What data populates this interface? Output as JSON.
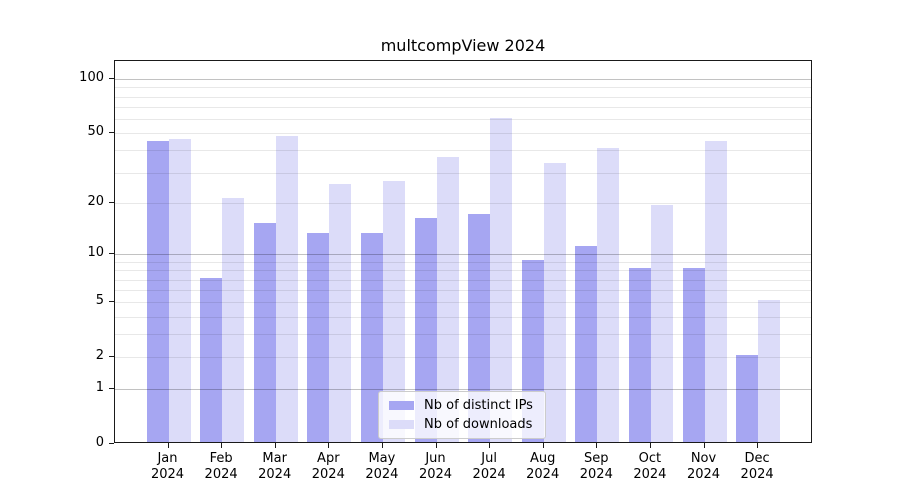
{
  "chart_data": {
    "type": "bar",
    "title": "multcompView 2024",
    "categories": [
      "Jan",
      "Feb",
      "Mar",
      "Apr",
      "May",
      "Jun",
      "Jul",
      "Aug",
      "Sep",
      "Oct",
      "Nov",
      "Dec"
    ],
    "category_year": "2024",
    "series": [
      {
        "name": "Nb of distinct IPs",
        "color": "#a6a6f2",
        "values": [
          44,
          7,
          15,
          13,
          13,
          16,
          17,
          9,
          11,
          8,
          8,
          2
        ]
      },
      {
        "name": "Nb of downloads",
        "color": "#dcdcf9",
        "values": [
          45,
          21,
          47,
          25,
          26,
          36,
          59,
          33,
          40,
          19,
          44,
          5
        ]
      }
    ],
    "y_axis": {
      "scale": "log1p",
      "tick_values": [
        100,
        50,
        20,
        10,
        5,
        2,
        1,
        0
      ],
      "minor_gridlines": [
        2,
        3,
        4,
        5,
        6,
        7,
        8,
        9,
        20,
        30,
        40,
        50,
        60,
        70,
        80,
        90
      ],
      "major_gridlines": [
        1,
        10,
        100
      ],
      "ylim": [
        0,
        126
      ]
    },
    "legend": {
      "position": "lower center"
    },
    "grid": true
  },
  "colors": {
    "bar_distinct_ips": "#a6a6f2",
    "bar_downloads": "#dcdcf9",
    "axis": "#1a1a1a",
    "text": "#000000",
    "legend_border": "#cccccc",
    "legend_background": "rgba(255,255,255,0.8)",
    "background": "#ffffff"
  }
}
